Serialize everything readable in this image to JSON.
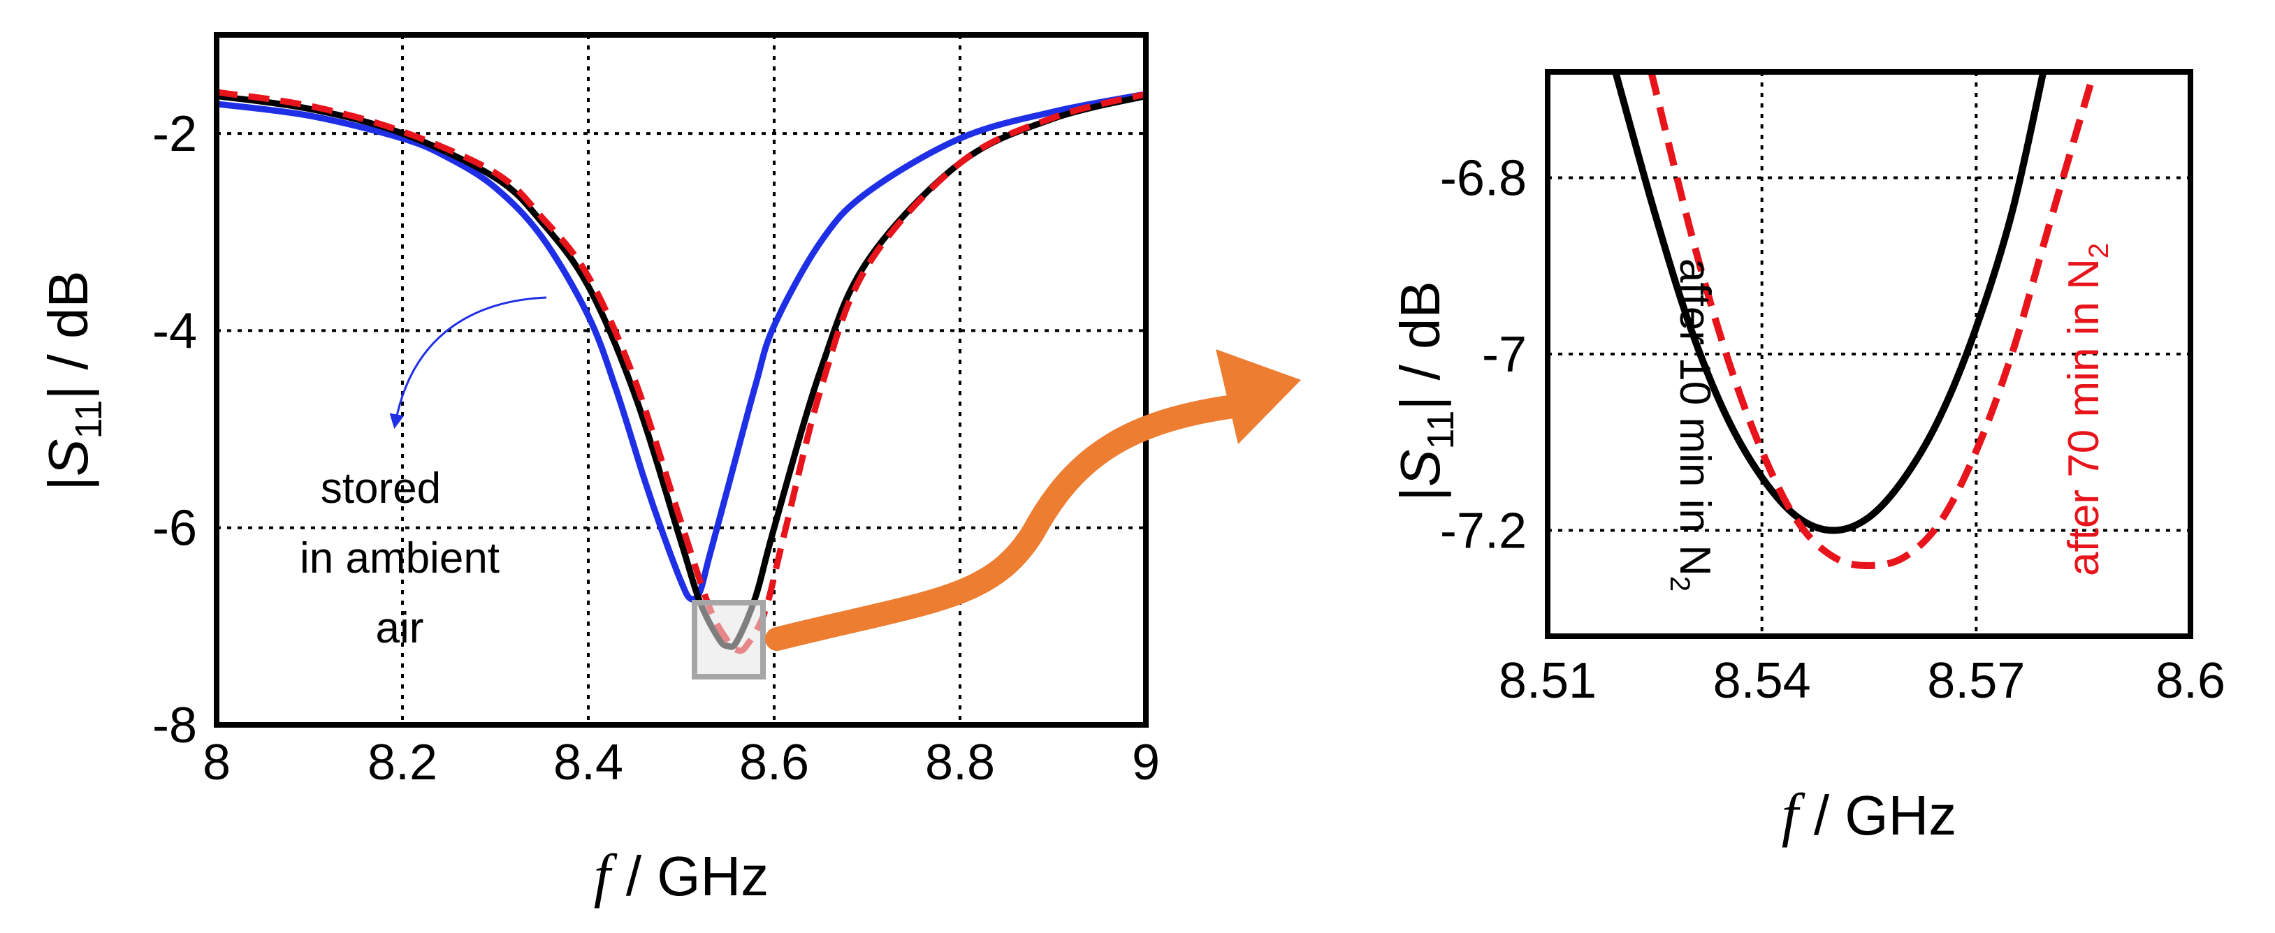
{
  "colors": {
    "blue": "#1f2fe6",
    "black": "#000000",
    "red": "#e8141b",
    "orange": "#ed7d31",
    "grid": "#000000",
    "zoom_box": "#a6a6a6"
  },
  "chart_data": [
    {
      "type": "line",
      "title": "",
      "xlabel": "f / GHz",
      "ylabel": "|S11| / dB",
      "xlim": [
        8,
        9
      ],
      "ylim": [
        -8,
        -1
      ],
      "xticks": [
        "8",
        "8.2",
        "8.4",
        "8.6",
        "8.8",
        "9"
      ],
      "yticks": [
        "-8",
        "-6",
        "-4",
        "-2"
      ],
      "grid": true,
      "annotation": {
        "lines": [
          "stored",
          "in ambient",
          "air"
        ]
      },
      "series": [
        {
          "color": "blue",
          "dash": "solid",
          "x": [
            8.0,
            8.1,
            8.2,
            8.25,
            8.3,
            8.35,
            8.4,
            8.43,
            8.46,
            8.48,
            8.5,
            8.51,
            8.52,
            8.53,
            8.55,
            8.58,
            8.6,
            8.65,
            8.7,
            8.8,
            8.9,
            9.0
          ],
          "y": [
            -1.7,
            -1.82,
            -2.05,
            -2.25,
            -2.55,
            -3.05,
            -3.85,
            -4.6,
            -5.5,
            -6.05,
            -6.55,
            -6.72,
            -6.65,
            -6.3,
            -5.6,
            -4.55,
            -3.95,
            -3.1,
            -2.6,
            -2.05,
            -1.78,
            -1.6
          ]
        },
        {
          "color": "black",
          "dash": "solid",
          "x": [
            8.0,
            8.1,
            8.2,
            8.3,
            8.35,
            8.4,
            8.45,
            8.5,
            8.52,
            8.54,
            8.55,
            8.56,
            8.58,
            8.6,
            8.65,
            8.7,
            8.8,
            8.9,
            9.0
          ],
          "y": [
            -1.62,
            -1.75,
            -2.0,
            -2.45,
            -2.9,
            -3.55,
            -4.65,
            -6.15,
            -6.75,
            -7.12,
            -7.2,
            -7.15,
            -6.7,
            -6.0,
            -4.4,
            -3.3,
            -2.3,
            -1.85,
            -1.62
          ]
        },
        {
          "color": "red",
          "dash": "dashed",
          "x": [
            8.0,
            8.1,
            8.2,
            8.3,
            8.35,
            8.4,
            8.45,
            8.5,
            8.53,
            8.55,
            8.56,
            8.57,
            8.59,
            8.61,
            8.65,
            8.7,
            8.8,
            8.9,
            9.0
          ],
          "y": [
            -1.58,
            -1.72,
            -1.98,
            -2.4,
            -2.85,
            -3.45,
            -4.5,
            -5.95,
            -6.8,
            -7.15,
            -7.24,
            -7.2,
            -6.85,
            -6.1,
            -4.6,
            -3.35,
            -2.3,
            -1.84,
            -1.6
          ]
        }
      ]
    },
    {
      "type": "line",
      "title": "",
      "xlabel": "f / GHz",
      "ylabel": "|S11| / dB",
      "xlim": [
        8.51,
        8.6
      ],
      "ylim": [
        -7.32,
        -6.68
      ],
      "xticks": [
        "8.51",
        "8.54",
        "8.57",
        "8.6"
      ],
      "yticks": [
        "-7.2",
        "-7",
        "-6.8"
      ],
      "grid": true,
      "series": [
        {
          "name": "after 10 min in N2",
          "label_main": "after 10 min in N",
          "label_sub": "2",
          "color": "black",
          "dash": "solid",
          "x": [
            8.5195,
            8.525,
            8.53,
            8.535,
            8.54,
            8.545,
            8.55,
            8.555,
            8.56,
            8.565,
            8.57,
            8.575,
            8.5794
          ],
          "y": [
            -6.68,
            -6.84,
            -6.97,
            -7.07,
            -7.14,
            -7.185,
            -7.2,
            -7.185,
            -7.14,
            -7.07,
            -6.97,
            -6.84,
            -6.68
          ]
        },
        {
          "name": "after 70 min in N2",
          "label_main": "after 70 min in N",
          "label_sub": "2",
          "color": "red",
          "dash": "dashed",
          "x": [
            8.5245,
            8.53,
            8.535,
            8.54,
            8.545,
            8.55,
            8.555,
            8.56,
            8.565,
            8.57,
            8.575,
            8.58,
            8.5865
          ],
          "y": [
            -6.68,
            -6.86,
            -7.0,
            -7.11,
            -7.19,
            -7.23,
            -7.24,
            -7.23,
            -7.19,
            -7.11,
            -7.0,
            -6.86,
            -6.68
          ]
        }
      ]
    }
  ]
}
